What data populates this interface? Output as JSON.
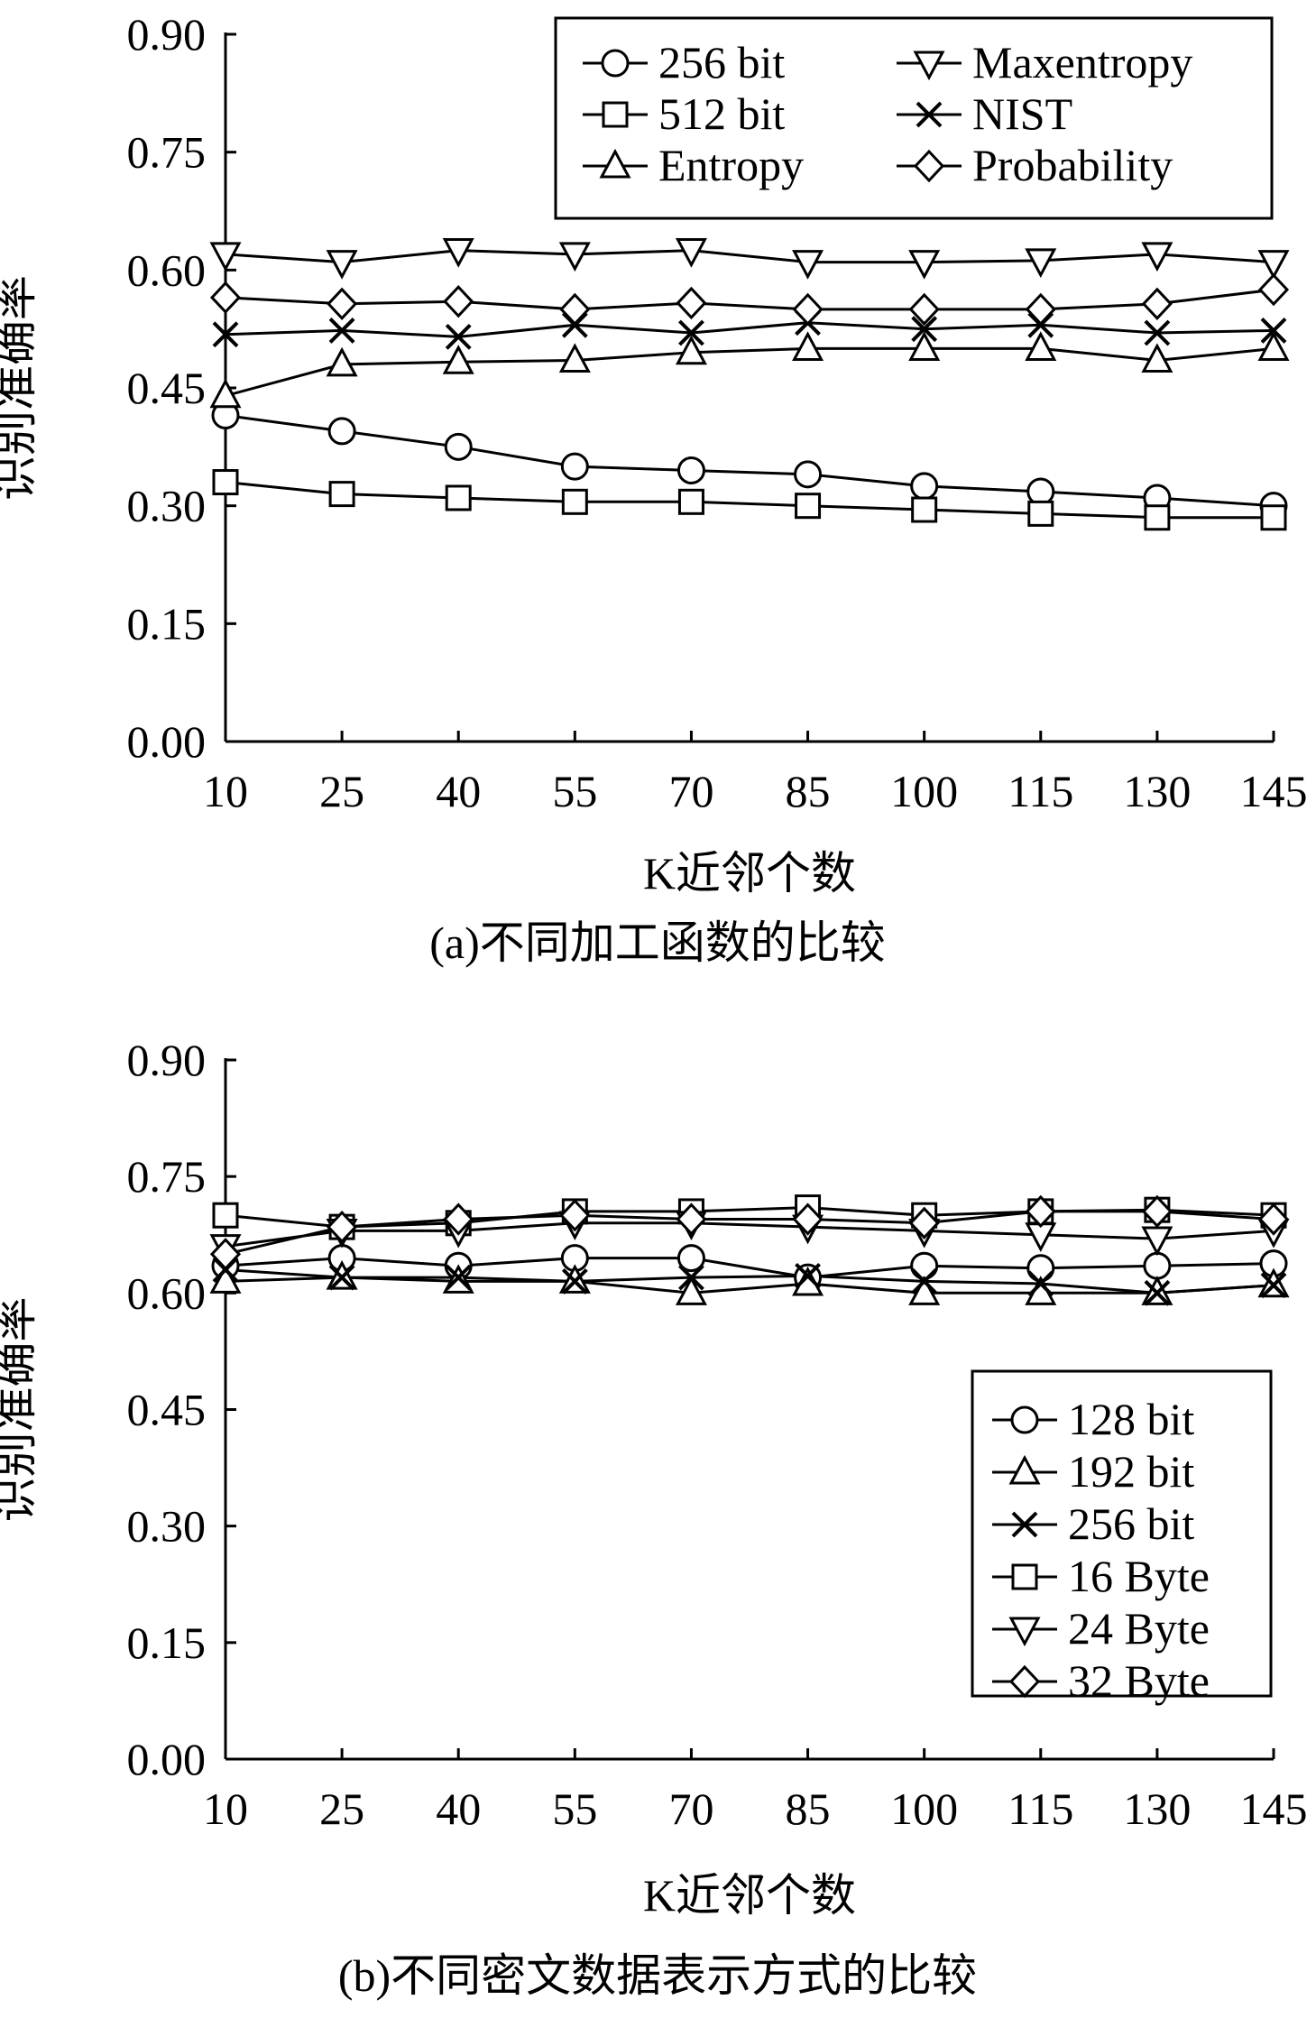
{
  "figure": {
    "caption_a": "(a)不同加工函数的比较",
    "caption_b": "(b)不同密文数据表示方式的比较"
  },
  "chart_data": [
    {
      "id": "a",
      "type": "line",
      "title": "",
      "xlabel": "K近邻个数",
      "ylabel": "识别准确率",
      "x": [
        10,
        25,
        40,
        55,
        70,
        85,
        100,
        115,
        130,
        145
      ],
      "ylim": [
        0,
        0.9
      ],
      "yticks": [
        "0.00",
        "0.15",
        "0.30",
        "0.45",
        "0.60",
        "0.75",
        "0.90"
      ],
      "grid": false,
      "legend_position": "top-right",
      "legend_columns": 2,
      "series": [
        {
          "name": "256 bit",
          "marker": "circle",
          "values": [
            0.415,
            0.395,
            0.375,
            0.35,
            0.345,
            0.34,
            0.325,
            0.318,
            0.31,
            0.3
          ]
        },
        {
          "name": "512 bit",
          "marker": "square",
          "values": [
            0.33,
            0.315,
            0.31,
            0.305,
            0.305,
            0.3,
            0.295,
            0.29,
            0.285,
            0.285
          ]
        },
        {
          "name": "Entropy",
          "marker": "triangle-up",
          "values": [
            0.44,
            0.48,
            0.483,
            0.485,
            0.495,
            0.5,
            0.5,
            0.5,
            0.485,
            0.5
          ]
        },
        {
          "name": "Maxentropy",
          "marker": "triangle-down",
          "values": [
            0.62,
            0.61,
            0.625,
            0.62,
            0.625,
            0.61,
            0.61,
            0.612,
            0.62,
            0.61
          ]
        },
        {
          "name": "NIST",
          "marker": "x",
          "values": [
            0.518,
            0.523,
            0.515,
            0.53,
            0.52,
            0.533,
            0.525,
            0.53,
            0.52,
            0.523
          ]
        },
        {
          "name": "Probability",
          "marker": "diamond",
          "values": [
            0.565,
            0.557,
            0.56,
            0.55,
            0.558,
            0.55,
            0.55,
            0.55,
            0.557,
            0.575
          ]
        }
      ]
    },
    {
      "id": "b",
      "type": "line",
      "title": "",
      "xlabel": "K近邻个数",
      "ylabel": "识别准确率",
      "x": [
        10,
        25,
        40,
        55,
        70,
        85,
        100,
        115,
        130,
        145
      ],
      "ylim": [
        0,
        0.9
      ],
      "yticks": [
        "0.00",
        "0.15",
        "0.30",
        "0.45",
        "0.60",
        "0.75",
        "0.90"
      ],
      "grid": false,
      "legend_position": "bottom-right",
      "legend_columns": 1,
      "series": [
        {
          "name": "128 bit",
          "marker": "circle",
          "values": [
            0.635,
            0.645,
            0.635,
            0.645,
            0.645,
            0.62,
            0.635,
            0.632,
            0.635,
            0.638
          ]
        },
        {
          "name": "192 bit",
          "marker": "triangle-up",
          "values": [
            0.615,
            0.62,
            0.615,
            0.615,
            0.6,
            0.612,
            0.6,
            0.6,
            0.6,
            0.61
          ]
        },
        {
          "name": "256 bit",
          "marker": "x",
          "values": [
            0.63,
            0.62,
            0.62,
            0.615,
            0.62,
            0.622,
            0.615,
            0.612,
            0.6,
            0.61
          ]
        },
        {
          "name": "16 Byte",
          "marker": "square",
          "values": [
            0.7,
            0.685,
            0.69,
            0.705,
            0.705,
            0.71,
            0.7,
            0.705,
            0.707,
            0.7
          ]
        },
        {
          "name": "24 Byte",
          "marker": "triangle-down",
          "values": [
            0.66,
            0.68,
            0.68,
            0.69,
            0.69,
            0.685,
            0.68,
            0.675,
            0.67,
            0.68
          ]
        },
        {
          "name": "32 Byte",
          "marker": "diamond",
          "values": [
            0.65,
            0.685,
            0.695,
            0.7,
            0.695,
            0.695,
            0.69,
            0.705,
            0.705,
            0.695
          ]
        }
      ]
    }
  ]
}
